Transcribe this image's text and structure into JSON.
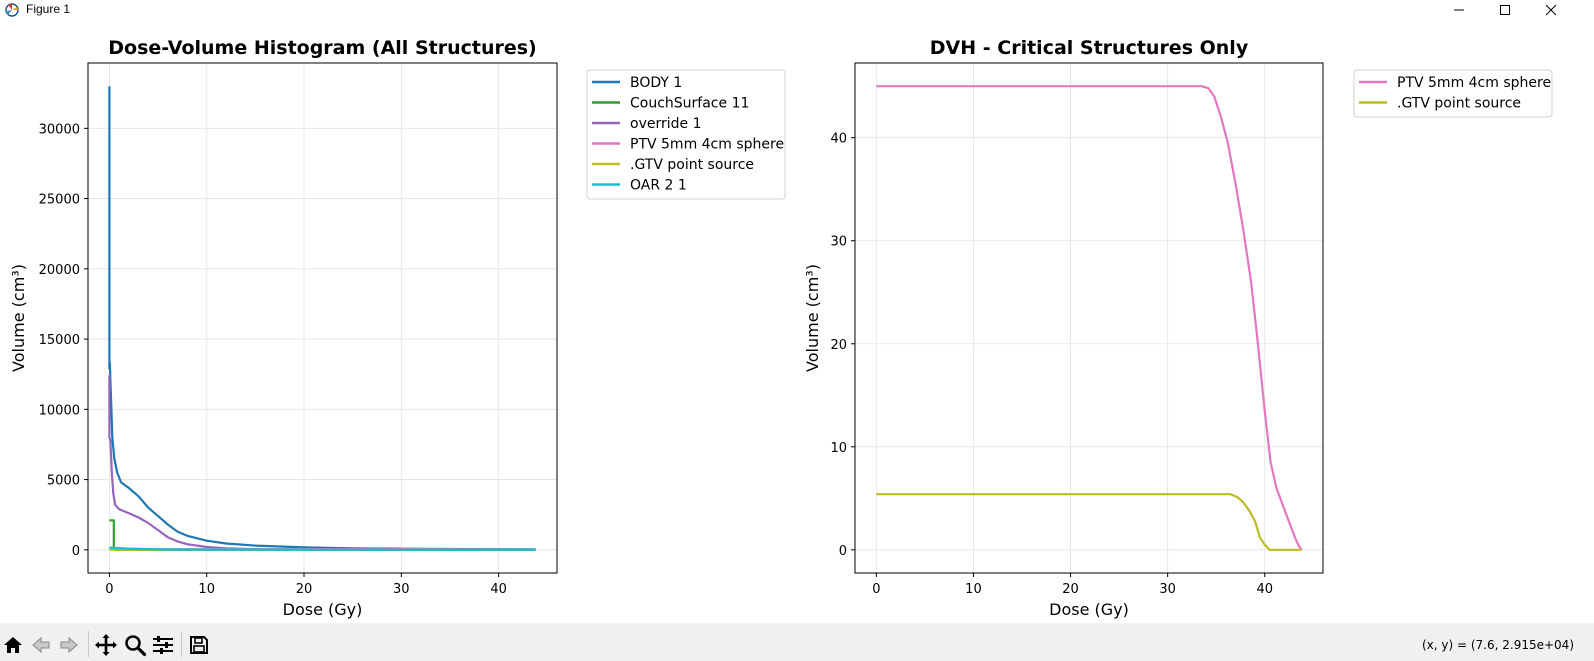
{
  "window": {
    "title": "Figure 1",
    "icons": [
      "app-icon",
      "minimize-icon",
      "maximize-icon",
      "close-icon"
    ]
  },
  "toolbar": {
    "buttons": [
      "home-icon",
      "back-icon",
      "forward-icon",
      "pan-icon",
      "zoom-icon",
      "configure-subplots-icon",
      "save-icon"
    ],
    "coords_text": "(x, y) = (7.6, 2.915e+04)"
  },
  "chart_data": [
    {
      "type": "line",
      "title": "Dose-Volume Histogram (All Structures)",
      "xlabel": "Dose (Gy)",
      "ylabel": "Volume (cm³)",
      "xlim": [
        -2.2,
        46
      ],
      "ylim": [
        -1650,
        34650
      ],
      "xticks": [
        0,
        10,
        20,
        30,
        40
      ],
      "yticks": [
        0,
        5000,
        10000,
        15000,
        20000,
        25000,
        30000
      ],
      "grid": true,
      "legend_position": "outside top-right",
      "series": [
        {
          "name": "BODY 1",
          "color": "#1f77b4",
          "x": [
            0,
            0,
            0.05,
            0.1,
            0.2,
            0.3,
            0.5,
            0.8,
            1.2,
            2,
            3,
            4,
            5,
            6,
            7,
            8,
            10,
            12,
            15,
            20,
            25,
            30,
            35,
            40,
            43.8
          ],
          "y": [
            33000,
            12900,
            13300,
            12000,
            10000,
            8000,
            6500,
            5500,
            4800,
            4400,
            3800,
            3000,
            2400,
            1800,
            1300,
            1000,
            650,
            450,
            300,
            170,
            110,
            80,
            55,
            45,
            40
          ]
        },
        {
          "name": "CouchSurface 11",
          "color": "#2ca02c",
          "x": [
            0,
            0.45,
            0.45,
            0.5,
            43.8
          ],
          "y": [
            2100,
            2100,
            100,
            0,
            0
          ]
        },
        {
          "name": "override 1",
          "color": "#9467bd",
          "x": [
            0,
            0,
            0.1,
            0.25,
            0.4,
            0.6,
            1,
            2,
            3,
            4,
            5,
            6,
            7,
            8,
            10,
            12,
            15,
            20,
            30,
            43.8
          ],
          "y": [
            12400,
            8000,
            7800,
            5500,
            4000,
            3200,
            2900,
            2600,
            2300,
            1900,
            1400,
            900,
            600,
            400,
            200,
            100,
            50,
            20,
            5,
            0
          ]
        },
        {
          "name": "PTV 5mm 4cm sphere",
          "color": "#e377c2",
          "x": [
            0,
            33.5,
            36,
            38,
            40,
            42,
            43,
            43.8
          ],
          "y": [
            45,
            45,
            40,
            30,
            15,
            5,
            2,
            0
          ]
        },
        {
          "name": ".GTV point source",
          "color": "#bcbd22",
          "x": [
            0,
            36.5,
            38,
            39.2,
            40,
            43.8
          ],
          "y": [
            5.4,
            5.4,
            4.5,
            2.5,
            0,
            0
          ]
        },
        {
          "name": "OAR 2 1",
          "color": "#17becf",
          "x": [
            0,
            0.5,
            1,
            2,
            5,
            10,
            20,
            30,
            43.8
          ],
          "y": [
            150,
            140,
            120,
            90,
            40,
            15,
            5,
            2,
            0
          ]
        }
      ]
    },
    {
      "type": "line",
      "title": "DVH - Critical Structures Only",
      "xlabel": "Dose (Gy)",
      "ylabel": "Volume (cm³)",
      "xlim": [
        -2.2,
        46
      ],
      "ylim": [
        -2.25,
        47.25
      ],
      "xticks": [
        0,
        10,
        20,
        30,
        40
      ],
      "yticks": [
        0,
        10,
        20,
        30,
        40
      ],
      "grid": true,
      "legend_position": "outside top-right",
      "series": [
        {
          "name": "PTV 5mm 4cm sphere",
          "color": "#e377c2",
          "x": [
            0,
            33.5,
            34.2,
            34.8,
            35.5,
            36.2,
            37,
            37.8,
            38.6,
            39.3,
            40,
            40.6,
            41.2,
            41.8,
            42.3,
            42.8,
            43.2,
            43.5,
            43.8
          ],
          "y": [
            45,
            45,
            44.8,
            44,
            42,
            39.5,
            35.5,
            31,
            26,
            20,
            13.5,
            8.5,
            6,
            4.5,
            3.2,
            2,
            1,
            0.4,
            0
          ]
        },
        {
          "name": ".GTV point source",
          "color": "#bcbd22",
          "x": [
            0,
            36.5,
            37.2,
            37.8,
            38.4,
            39,
            39.5,
            40,
            40.5,
            43.8
          ],
          "y": [
            5.4,
            5.4,
            5.1,
            4.6,
            3.8,
            2.8,
            1.2,
            0.5,
            0,
            0
          ]
        }
      ]
    }
  ]
}
